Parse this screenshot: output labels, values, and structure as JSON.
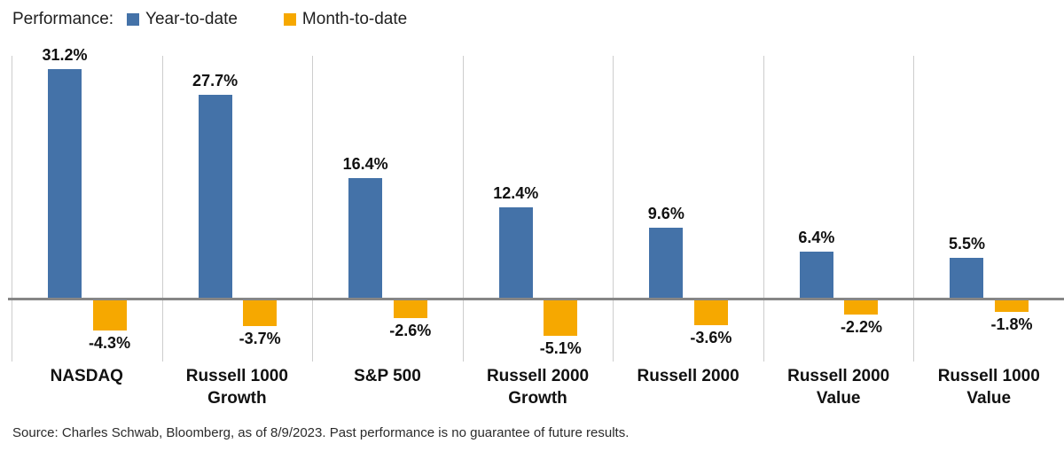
{
  "legend": {
    "title": "Performance:",
    "items": [
      {
        "label": "Year-to-date",
        "color": "#4472A8"
      },
      {
        "label": "Month-to-date",
        "color": "#F6A800"
      }
    ]
  },
  "chart_data": {
    "type": "bar",
    "title": "Performance: Year-to-date vs Month-to-date",
    "categories": [
      "NASDAQ",
      "Russell 1000 Growth",
      "S&P 500",
      "Russell 2000 Growth",
      "Russell 2000",
      "Russell 2000 Value",
      "Russell 1000 Value"
    ],
    "categories_display": [
      "NASDAQ",
      "Russell 1000\nGrowth",
      "S&P 500",
      "Russell 2000\nGrowth",
      "Russell 2000",
      "Russell 2000\nValue",
      "Russell 1000\nValue"
    ],
    "series": [
      {
        "name": "Year-to-date",
        "color": "#4472A8",
        "values": [
          31.2,
          27.7,
          16.4,
          12.4,
          9.6,
          6.4,
          5.5
        ],
        "labels": [
          "31.2%",
          "27.7%",
          "16.4%",
          "12.4%",
          "9.6%",
          "6.4%",
          "5.5%"
        ]
      },
      {
        "name": "Month-to-date",
        "color": "#F6A800",
        "values": [
          -4.3,
          -3.7,
          -2.6,
          -5.1,
          -3.6,
          -2.2,
          -1.8
        ],
        "labels": [
          "-4.3%",
          "-3.7%",
          "-2.6%",
          "-5.1%",
          "-3.6%",
          "-2.2%",
          "-1.8%"
        ]
      }
    ],
    "ylim": [
      -7.5,
      33
    ],
    "xlabel": "",
    "ylabel": "",
    "grid": "vertical-separators-only",
    "legend_position": "top-left",
    "baseline_color": "#868686",
    "gridline_color": "#CDCDCD"
  },
  "footer": {
    "source": "Source: Charles Schwab, Bloomberg, as of 8/9/2023.  Past performance is no guarantee of future results."
  }
}
